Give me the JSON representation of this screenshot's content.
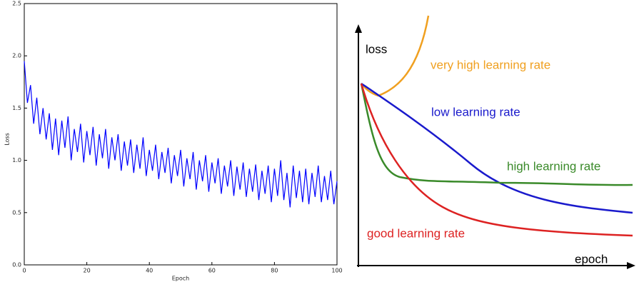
{
  "chart_data": [
    {
      "type": "line",
      "x_label": "Epoch",
      "y_label": "Loss",
      "xlim": [
        0,
        100
      ],
      "xticks": [
        0,
        20,
        40,
        60,
        80,
        100
      ],
      "ylim": [
        0,
        2.5
      ],
      "yticks": [
        {
          "value": 0,
          "label": "0.0"
        },
        {
          "value": 0.5,
          "label": "0.5"
        },
        {
          "value": 1,
          "label": "1.0"
        },
        {
          "value": 1.5,
          "label": "1.5"
        },
        {
          "value": 2,
          "label": "2.0"
        },
        {
          "value": 2.5,
          "label": "2.5"
        }
      ],
      "x": [
        0,
        1,
        2,
        3,
        4,
        5,
        6,
        7,
        8,
        9,
        10,
        11,
        12,
        13,
        14,
        15,
        16,
        17,
        18,
        19,
        20,
        21,
        22,
        23,
        24,
        25,
        26,
        27,
        28,
        29,
        30,
        31,
        32,
        33,
        34,
        35,
        36,
        37,
        38,
        39,
        40,
        41,
        42,
        43,
        44,
        45,
        46,
        47,
        48,
        49,
        50,
        51,
        52,
        53,
        54,
        55,
        56,
        57,
        58,
        59,
        60,
        61,
        62,
        63,
        64,
        65,
        66,
        67,
        68,
        69,
        70,
        71,
        72,
        73,
        74,
        75,
        76,
        77,
        78,
        79,
        80,
        81,
        82,
        83,
        84,
        85,
        86,
        87,
        88,
        89,
        90,
        91,
        92,
        93,
        94,
        95,
        96,
        97,
        98,
        99,
        100
      ],
      "series": [
        {
          "name": "Loss",
          "color": "#0000ff",
          "values": [
            1.95,
            1.55,
            1.72,
            1.35,
            1.6,
            1.25,
            1.5,
            1.2,
            1.45,
            1.1,
            1.4,
            1.05,
            1.38,
            1.12,
            1.42,
            1.0,
            1.3,
            1.08,
            1.35,
            0.98,
            1.28,
            1.05,
            1.32,
            0.95,
            1.25,
            1.02,
            1.3,
            0.92,
            1.22,
            1.0,
            1.25,
            0.9,
            1.18,
            0.95,
            1.2,
            0.88,
            1.15,
            0.92,
            1.22,
            0.85,
            1.1,
            0.9,
            1.15,
            0.82,
            1.08,
            0.88,
            1.12,
            0.78,
            1.05,
            0.85,
            1.1,
            0.75,
            1.02,
            0.82,
            1.08,
            0.72,
            1.0,
            0.8,
            1.05,
            0.7,
            0.98,
            0.78,
            1.02,
            0.68,
            0.95,
            0.75,
            1.0,
            0.66,
            0.94,
            0.72,
            0.98,
            0.65,
            0.92,
            0.7,
            0.96,
            0.62,
            0.9,
            0.68,
            0.95,
            0.6,
            0.92,
            0.66,
            1.0,
            0.62,
            0.88,
            0.55,
            0.95,
            0.64,
            0.9,
            0.6,
            0.92,
            0.58,
            0.88,
            0.65,
            0.95,
            0.6,
            0.85,
            0.62,
            0.9,
            0.58,
            0.8
          ]
        }
      ]
    },
    {
      "type": "schematic",
      "y_label": "loss",
      "x_label": "epoch",
      "series": [
        {
          "name": "very high learning rate",
          "color": "#f0a020"
        },
        {
          "name": "low learning rate",
          "color": "#1a1acc"
        },
        {
          "name": "high learning rate",
          "color": "#3a8a2a"
        },
        {
          "name": "good learning rate",
          "color": "#dd2222"
        }
      ]
    }
  ]
}
